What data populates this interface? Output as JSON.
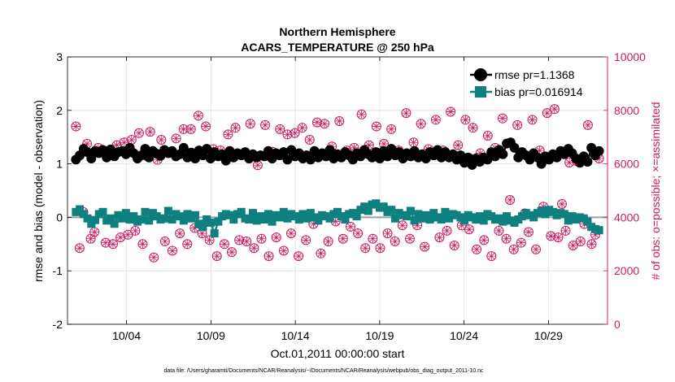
{
  "chart_data": {
    "type": "line",
    "title": "Northern Hemisphere",
    "subtitle": "ACARS_TEMPERATURE @ 250 hPa",
    "xlabel": "Oct.01,2011 00:00:00 start",
    "ylabel": "rmse and bias (model - observation)",
    "y2label": "# of obs: o=possible; ×=assimilated",
    "footnote": "data file: /Users/gharamti/Documents/NCAR/Reanalysis/~/Documents/NCAR/Reanalysis/webpub/obs_diag_output_2011-10.nc",
    "xlim": [
      0.5,
      32.5
    ],
    "ylim": [
      -2,
      3
    ],
    "y2lim": [
      0,
      10000
    ],
    "xticks": [
      4,
      9,
      14,
      19,
      24,
      29
    ],
    "xtick_labels": [
      "10/04",
      "10/09",
      "10/14",
      "10/19",
      "10/24",
      "10/29"
    ],
    "yticks": [
      -2,
      -1,
      0,
      1,
      2,
      3
    ],
    "y2ticks": [
      0,
      2000,
      4000,
      6000,
      8000,
      10000
    ],
    "grid": true,
    "legend_position": "top-right",
    "colors": {
      "rmse": "#000000",
      "bias": "#0f8080",
      "obs": "#cc1b63",
      "zero": "#9aa0a0",
      "grid": "#e4e4e4"
    },
    "series": [
      {
        "name": "rmse pr=1.1368",
        "style": "line-circle",
        "values": [
          1.08,
          1.16,
          1.28,
          1.22,
          1.1,
          1.24,
          1.2,
          1.26,
          1.12,
          1.27,
          1.14,
          1.22,
          1.24,
          1.18,
          1.3,
          1.2,
          1.1,
          1.16,
          1.28,
          1.12,
          1.24,
          1.19,
          1.15,
          1.26,
          1.2,
          1.24,
          1.14,
          1.18,
          1.3,
          1.12,
          1.21,
          1.1,
          1.25,
          1.16,
          1.28,
          1.1,
          1.22,
          1.14,
          1.18,
          1.06,
          1.24,
          1.12,
          1.2,
          1.16,
          1.22,
          1.1,
          1.18,
          1.12,
          1.16,
          1.14,
          1.24,
          1.1,
          1.2,
          1.16,
          1.22,
          1.08,
          1.26,
          1.14,
          1.2,
          1.1,
          1.16,
          1.08,
          1.24,
          1.12,
          1.2,
          1.14,
          1.26,
          1.1,
          1.18,
          1.12,
          1.22,
          1.16,
          1.08,
          1.2,
          1.14,
          1.26,
          1.18,
          1.12,
          1.22,
          1.1,
          1.24,
          1.14,
          1.28,
          1.16,
          1.22,
          1.1,
          1.2,
          1.14,
          1.24,
          1.12,
          1.18,
          1.1,
          1.22,
          1.16,
          1.26,
          1.12,
          1.22,
          1.12,
          1.18,
          1.08,
          1.16,
          1.02,
          1.12,
          0.98,
          1.1,
          1.04,
          1.12,
          1.08,
          1.22,
          1.14,
          1.26,
          1.18,
          1.38,
          1.4,
          1.3,
          1.12,
          1.22,
          1.16,
          1.08,
          1.2,
          1.12,
          1.0,
          1.14,
          1.08,
          1.18,
          1.12,
          1.24,
          1.18,
          1.28,
          1.2,
          1.1,
          1.02,
          1.14,
          1.04,
          1.3,
          1.16,
          1.24
        ]
      },
      {
        "name": "bias pr=0.016914",
        "style": "line-square",
        "values": [
          0.1,
          0.15,
          0.06,
          -0.02,
          -0.12,
          -0.05,
          0.06,
          0.1,
          -0.06,
          -0.02,
          -0.12,
          0.04,
          -0.02,
          0.08,
          -0.04,
          0.02,
          -0.08,
          -0.04,
          0.1,
          -0.06,
          0.08,
          0.02,
          -0.04,
          -0.02,
          0.12,
          -0.04,
          0.06,
          0.02,
          -0.06,
          0.06,
          -0.02,
          0.04,
          -0.12,
          -0.18,
          -0.04,
          -0.1,
          -0.3,
          -0.08,
          0.02,
          0.06,
          0.04,
          -0.04,
          0.06,
          0.1,
          -0.02,
          -0.04,
          0.08,
          -0.06,
          0.02,
          -0.04,
          0.06,
          -0.08,
          0.04,
          0.0,
          0.1,
          -0.02,
          0.06,
          0.02,
          -0.04,
          0.06,
          -0.02,
          0.08,
          0.0,
          -0.06,
          0.04,
          0.02,
          -0.02,
          0.06,
          0.1,
          0.02,
          -0.04,
          0.06,
          0.08,
          0.02,
          0.14,
          0.2,
          0.12,
          0.24,
          0.26,
          0.18,
          0.2,
          0.1,
          0.14,
          -0.02,
          0.08,
          0.04,
          0.02,
          0.12,
          -0.06,
          0.06,
          -0.02,
          0.04,
          -0.04,
          0.08,
          0.0,
          -0.04,
          0.1,
          -0.02,
          0.06,
          0.04,
          0.0,
          -0.06,
          0.04,
          0.0,
          -0.04,
          0.02,
          -0.06,
          0.06,
          0.02,
          -0.04,
          -0.02,
          -0.08,
          0.02,
          -0.06,
          -0.1,
          -0.04,
          0.02,
          0.08,
          0.04,
          0.0,
          0.08,
          0.12,
          0.06,
          0.14,
          0.1,
          0.04,
          0.08,
          0.06,
          -0.06,
          0.02,
          -0.04,
          0.0,
          -0.02,
          -0.08,
          -0.18,
          -0.22,
          -0.24
        ]
      },
      {
        "name": "# of obs",
        "style": "marker-circle-asterisk",
        "axis": "right",
        "values": [
          7400,
          2850,
          4200,
          6750,
          3200,
          3450,
          6600,
          6500,
          3050,
          6350,
          3000,
          6700,
          3250,
          6800,
          3350,
          6900,
          3500,
          7150,
          3000,
          6300,
          7200,
          2500,
          6150,
          6900,
          3100,
          6400,
          2750,
          6950,
          3400,
          7300,
          3000,
          7300,
          3600,
          7800,
          3400,
          7400,
          3150,
          6550,
          2550,
          6500,
          3000,
          7100,
          2700,
          7350,
          3150,
          6350,
          3100,
          7500,
          2850,
          5950,
          3200,
          7450,
          2550,
          6450,
          3250,
          7300,
          2750,
          7100,
          3400,
          7150,
          2550,
          7350,
          3150,
          6900,
          3750,
          7550,
          2650,
          7500,
          3100,
          6650,
          3850,
          7600,
          3200,
          6500,
          3650,
          6600,
          3400,
          7850,
          2850,
          6700,
          3200,
          7400,
          2850,
          6750,
          3400,
          7300,
          3100,
          6500,
          3700,
          7900,
          3200,
          6800,
          3700,
          7500,
          2900,
          6550,
          4000,
          7650,
          3250,
          6500,
          3500,
          7950,
          2950,
          6700,
          3700,
          7650,
          3550,
          7350,
          2800,
          6400,
          3150,
          7050,
          2550,
          6600,
          3500,
          7700,
          3200,
          4650,
          2800,
          7450,
          3050,
          4150,
          3450,
          7650,
          2800,
          6500,
          4400,
          7900,
          3300,
          8050,
          3250,
          4500,
          3500,
          6050,
          2950,
          6100,
          3100,
          3750,
          7450,
          3000,
          3350,
          6200
        ]
      }
    ]
  }
}
